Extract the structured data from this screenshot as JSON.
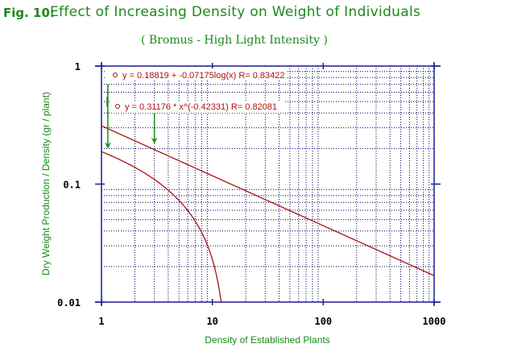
{
  "header": {
    "fig_label": "Fig. 10:",
    "title": "Effect of Increasing Density on Weight of Individuals",
    "subtitle": "( Bromus - High Light Intensity )"
  },
  "chart_data": {
    "type": "line",
    "title": "Effect of Increasing Density on Weight of Individuals",
    "subtitle": "( Bromus - High Light Intensity )",
    "xlabel": "Density of Established Plants",
    "ylabel": "Dry Weight Production / Density (gr / plant)",
    "xscale": "log",
    "yscale": "log",
    "xlim": [
      1,
      1000
    ],
    "ylim": [
      0.01,
      1
    ],
    "x_ticks": [
      {
        "value": 1,
        "label": "1"
      },
      {
        "value": 10,
        "label": "10"
      },
      {
        "value": 100,
        "label": "100"
      },
      {
        "value": 1000,
        "label": "1000"
      }
    ],
    "y_ticks": [
      {
        "value": 1,
        "label": "1"
      },
      {
        "value": 0.1,
        "label": "0.1"
      },
      {
        "value": 0.01,
        "label": "0.01"
      }
    ],
    "grid": true,
    "series": [
      {
        "name": "y = 0.18819 + -0.07175log(x) R= 0.83422",
        "kind": "log",
        "a": 0.18819,
        "b": -0.07175,
        "r": 0.83422,
        "color": "#aa1111"
      },
      {
        "name": "y = 0.31176 * x^(-0.42331) R= 0.82081",
        "kind": "power",
        "a": 0.31176,
        "b": -0.42331,
        "r": 0.82081,
        "color": "#aa1111"
      }
    ],
    "legend": [
      {
        "label": "y = 0.18819 + -0.07175log(x) R= 0.83422"
      },
      {
        "label": "y = 0.31176 * x^(-0.42331) R= 0.82081"
      }
    ],
    "annotations": [
      {
        "type": "arrow",
        "x": 1.05,
        "y_from": 0.7,
        "y_to": 0.2,
        "color": "#1a8a1a"
      },
      {
        "type": "arrow",
        "x": 3,
        "y_from": 0.4,
        "y_to": 0.22,
        "color": "#1a8a1a"
      }
    ]
  }
}
